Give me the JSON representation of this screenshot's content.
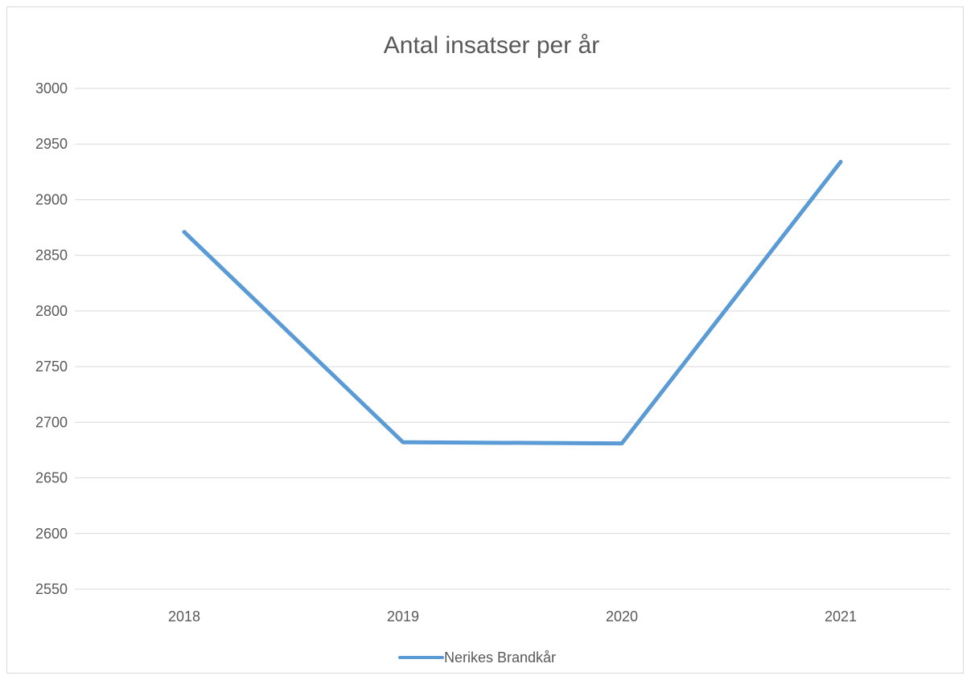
{
  "chart_data": {
    "type": "line",
    "title": "Antal insatser per år",
    "xlabel": "",
    "ylabel": "",
    "categories": [
      "2018",
      "2019",
      "2020",
      "2021"
    ],
    "series": [
      {
        "name": "Nerikes Brandkår",
        "values": [
          2871,
          2682,
          2681,
          2934
        ],
        "color": "#5b9bd5"
      }
    ],
    "ylim": [
      2550,
      3000
    ],
    "yticks": [
      "2550",
      "2600",
      "2650",
      "2700",
      "2750",
      "2800",
      "2850",
      "2900",
      "2950",
      "3000"
    ],
    "grid": true,
    "legend_position": "bottom",
    "colors": {
      "gridline": "#d9d9d9",
      "text": "#595959",
      "border": "#d9d9d9"
    }
  }
}
